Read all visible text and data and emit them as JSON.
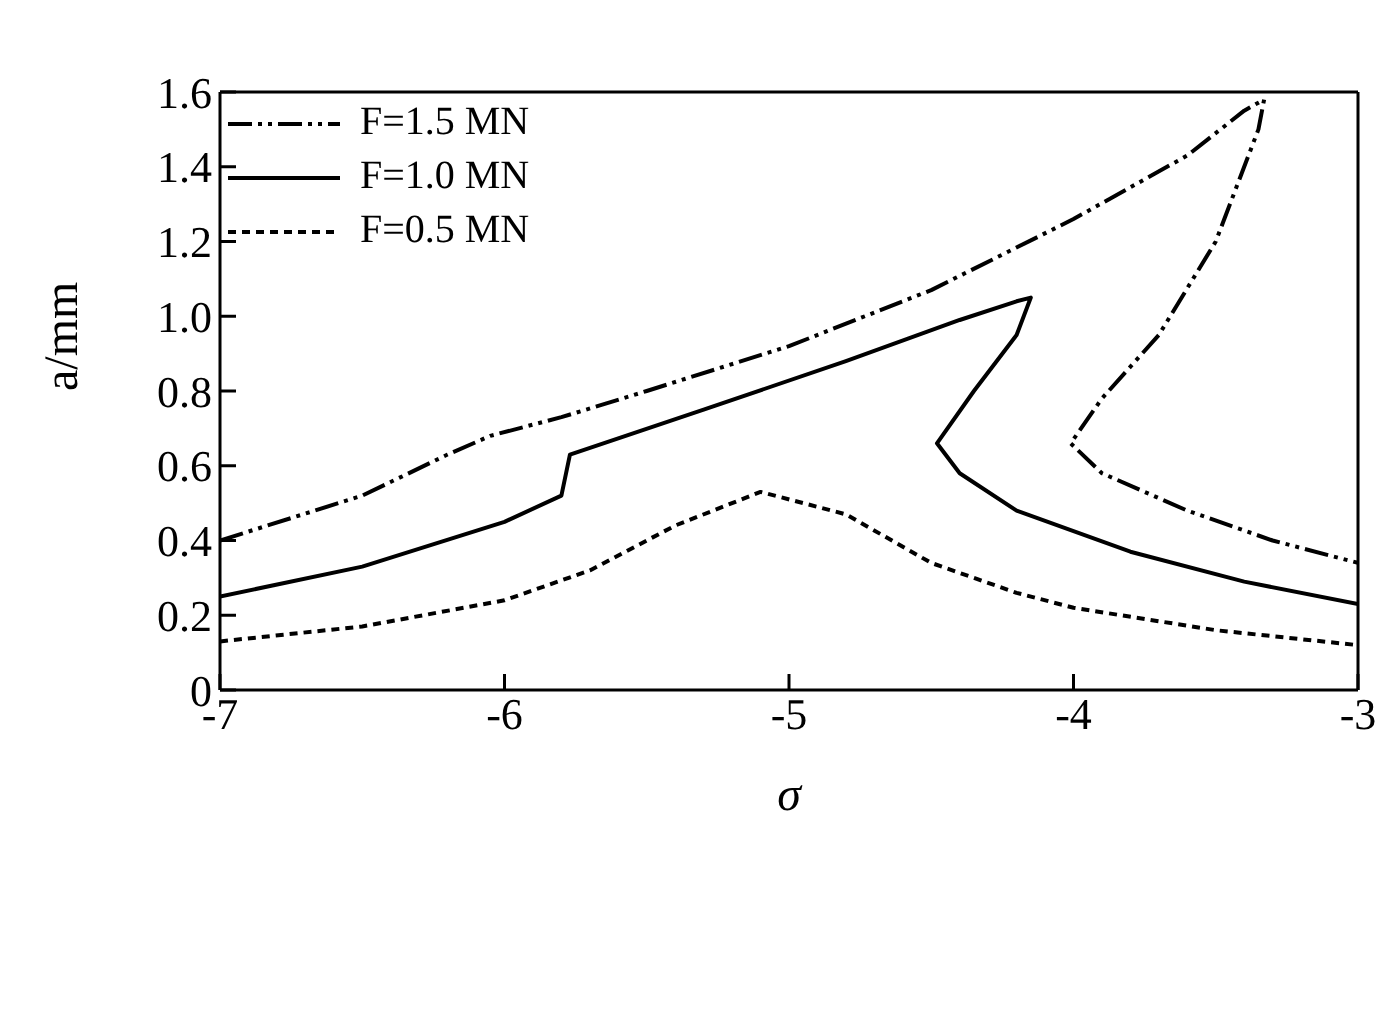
{
  "chart_data": {
    "type": "line",
    "xlabel": "σ",
    "ylabel": "a/mm",
    "xlim": [
      -7,
      -3
    ],
    "xticks": [
      -7,
      -6,
      -5,
      -4,
      -3
    ],
    "ylim": [
      0,
      1.6
    ],
    "yticks": [
      0,
      {
        "value": 0.2,
        "label": "0.2"
      },
      {
        "value": 0.4,
        "label": "0.4"
      },
      {
        "value": 0.6,
        "label": "0.6"
      },
      {
        "value": 0.8,
        "label": "0.8"
      },
      {
        "value": 1,
        "label": "1.0"
      },
      {
        "value": 1.2,
        "label": "1.2"
      },
      {
        "value": 1.4,
        "label": "1.4"
      },
      {
        "value": 1.6,
        "label": "1.6"
      }
    ],
    "legend": "top left",
    "marker": "none",
    "series": [
      {
        "name": "F=1.5 MN",
        "color": "#000000",
        "line_style": "dashed",
        "x": [
          -7,
          -6.5,
          -6.2,
          -6.05,
          -5.8,
          -5.5,
          -5,
          -4.5,
          -4,
          -3.6,
          -3.4,
          -3.33,
          -3.35,
          -3.5,
          -3.7,
          -3.9,
          -4.01,
          -3.9,
          -3.6,
          -3.3,
          -3
        ],
        "values": [
          0.4,
          0.52,
          0.63,
          0.68,
          0.73,
          0.8,
          0.92,
          1.07,
          1.26,
          1.43,
          1.55,
          1.58,
          1.5,
          1.2,
          0.95,
          0.78,
          0.66,
          0.58,
          0.48,
          0.4,
          0.34
        ]
      },
      {
        "name": "F=1.0 MN",
        "color": "#000000",
        "line_style": "solid",
        "x": [
          -7,
          -6.5,
          -6,
          -5.8,
          -5.77,
          -5.3,
          -4.8,
          -4.4,
          -4.2,
          -4.15,
          -4.2,
          -4.35,
          -4.48,
          -4.4,
          -4.2,
          -3.8,
          -3.4,
          -3
        ],
        "values": [
          0.25,
          0.33,
          0.45,
          0.52,
          0.63,
          0.75,
          0.88,
          0.99,
          1.04,
          1.05,
          0.95,
          0.8,
          0.66,
          0.58,
          0.48,
          0.37,
          0.29,
          0.23
        ]
      },
      {
        "name": "F=0.5 MN",
        "color": "#000000",
        "line_style": "dotted",
        "x": [
          -7,
          -6.5,
          -6,
          -5.7,
          -5.4,
          -5.1,
          -4.8,
          -4.5,
          -4.2,
          -4,
          -3.5,
          -3
        ],
        "values": [
          0.13,
          0.17,
          0.24,
          0.32,
          0.44,
          0.53,
          0.47,
          0.34,
          0.26,
          0.22,
          0.16,
          0.12
        ]
      }
    ]
  }
}
